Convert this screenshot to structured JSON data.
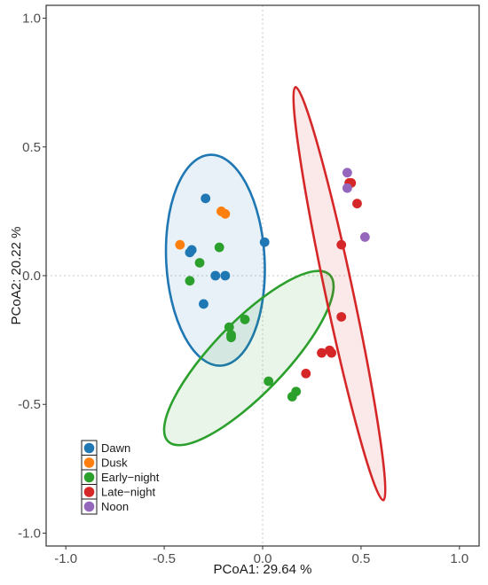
{
  "chart_data": {
    "type": "scatter",
    "xlabel": "PCoA1:  29.64 %",
    "ylabel": "PCoA2:  20.22 %",
    "xlim": [
      -1.1,
      1.1
    ],
    "ylim": [
      -1.05,
      1.05
    ],
    "x_ticks": [
      -1.0,
      -0.5,
      0.0,
      0.5,
      1.0
    ],
    "y_ticks": [
      -1.0,
      -0.5,
      0.0,
      0.5,
      1.0
    ],
    "x_tick_labels": [
      "-1.0",
      "-0.5",
      "0.0",
      "0.5",
      "1.0"
    ],
    "y_tick_labels": [
      "-1.0",
      "-0.5",
      "0.0",
      "0.5",
      "1.0"
    ],
    "grid": false,
    "reference_lines": {
      "x": 0,
      "y": 0,
      "style": "dotted"
    },
    "legend_position": "bottom-left",
    "series": [
      {
        "name": "Dawn",
        "color": "#1f77b4",
        "points": [
          [
            -0.29,
            0.3
          ],
          [
            -0.36,
            0.1
          ],
          [
            -0.37,
            0.09
          ],
          [
            -0.24,
            0.0
          ],
          [
            -0.19,
            0.0
          ],
          [
            -0.3,
            -0.11
          ],
          [
            0.01,
            0.13
          ]
        ],
        "ellipse": {
          "cx": -0.24,
          "cy": 0.06,
          "rx": 0.25,
          "ry": 0.41,
          "angle_deg": -3
        }
      },
      {
        "name": "Dusk",
        "color": "#ff7f0e",
        "points": [
          [
            -0.21,
            0.25
          ],
          [
            -0.19,
            0.24
          ],
          [
            -0.42,
            0.12
          ]
        ],
        "ellipse": null
      },
      {
        "name": "Early−night",
        "color": "#2ca02c",
        "points": [
          [
            -0.22,
            0.11
          ],
          [
            -0.32,
            0.05
          ],
          [
            -0.37,
            -0.02
          ],
          [
            -0.09,
            -0.17
          ],
          [
            -0.17,
            -0.2
          ],
          [
            -0.16,
            -0.23
          ],
          [
            -0.16,
            -0.24
          ],
          [
            0.03,
            -0.41
          ],
          [
            0.17,
            -0.45
          ],
          [
            0.15,
            -0.47
          ]
        ],
        "ellipse": {
          "cx": -0.07,
          "cy": -0.32,
          "rx": 0.59,
          "ry": 0.14,
          "angle_deg": -46
        }
      },
      {
        "name": "Late−night",
        "color": "#d62728",
        "points": [
          [
            0.45,
            0.36
          ],
          [
            0.44,
            0.36
          ],
          [
            0.48,
            0.28
          ],
          [
            0.4,
            0.12
          ],
          [
            0.4,
            -0.16
          ],
          [
            0.3,
            -0.3
          ],
          [
            0.34,
            -0.29
          ],
          [
            0.35,
            -0.3
          ],
          [
            0.22,
            -0.38
          ]
        ],
        "ellipse": {
          "cx": 0.39,
          "cy": -0.07,
          "rx": 0.07,
          "ry": 0.82,
          "angle_deg": -12
        }
      },
      {
        "name": "Noon",
        "color": "#9467bd",
        "points": [
          [
            0.43,
            0.4
          ],
          [
            0.43,
            0.34
          ],
          [
            0.52,
            0.15
          ]
        ],
        "ellipse": null
      }
    ]
  }
}
